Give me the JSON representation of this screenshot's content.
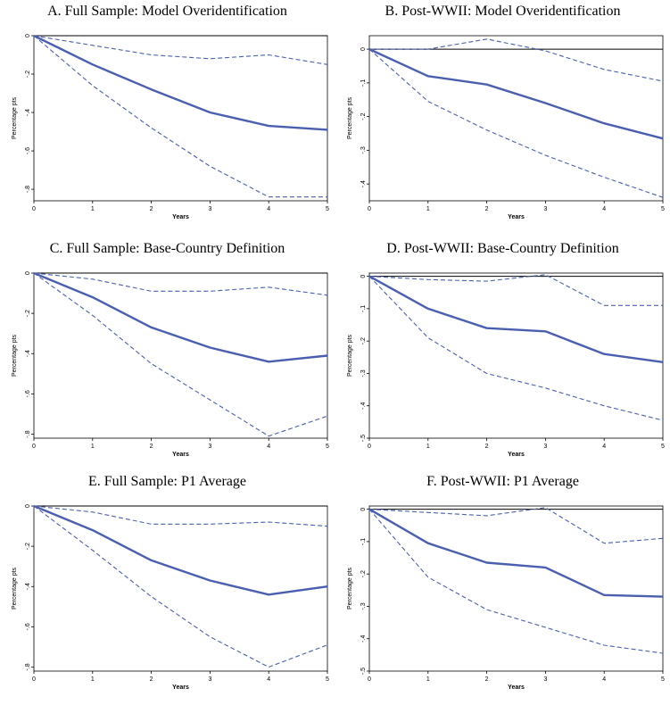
{
  "style": {
    "line_color": "#4a5fb0",
    "zero_line_color": "#000000"
  },
  "chart_data": [
    {
      "type": "line",
      "title": "A. Full Sample: Model Overidentification",
      "xlabel": "Years",
      "ylabel": "Percentage pts",
      "x": [
        0,
        1,
        2,
        3,
        4,
        5
      ],
      "xlim": [
        0,
        5
      ],
      "ylim": [
        -0.86,
        0.0
      ],
      "yticks": [
        0,
        -0.2,
        -0.4,
        -0.6,
        -0.8
      ],
      "ytick_labels": [
        "0",
        "-.2",
        "-.4",
        "-.6",
        "-.8"
      ],
      "xtick_labels": [
        "0",
        "1",
        "2",
        "3",
        "4",
        "5"
      ],
      "series": [
        {
          "role": "estimate",
          "values": [
            0,
            -0.15,
            -0.28,
            -0.4,
            -0.47,
            -0.49
          ]
        },
        {
          "role": "upper",
          "values": [
            0,
            -0.05,
            -0.1,
            -0.12,
            -0.1,
            -0.15
          ]
        },
        {
          "role": "lower",
          "values": [
            0,
            -0.26,
            -0.48,
            -0.68,
            -0.84,
            -0.84
          ]
        }
      ]
    },
    {
      "type": "line",
      "title": "B. Post-WWII: Model Overidentification",
      "xlabel": "Years",
      "ylabel": "Percentage pts",
      "x": [
        0,
        1,
        2,
        3,
        4,
        5
      ],
      "xlim": [
        0,
        5
      ],
      "ylim": [
        -0.45,
        0.04
      ],
      "yticks": [
        0,
        -0.1,
        -0.2,
        -0.3,
        -0.4
      ],
      "ytick_labels": [
        "0",
        "-.1",
        "-.2",
        "-.3",
        "-.4"
      ],
      "xtick_labels": [
        "0",
        "1",
        "2",
        "3",
        "4",
        "5"
      ],
      "series": [
        {
          "role": "estimate",
          "values": [
            0,
            -0.08,
            -0.105,
            -0.16,
            -0.22,
            -0.265
          ]
        },
        {
          "role": "upper",
          "values": [
            0,
            0,
            0.03,
            -0.005,
            -0.06,
            -0.095
          ]
        },
        {
          "role": "lower",
          "values": [
            0,
            -0.155,
            -0.24,
            -0.315,
            -0.38,
            -0.44
          ]
        }
      ]
    },
    {
      "type": "line",
      "title": "C. Full Sample: Base-Country Definition",
      "xlabel": "Years",
      "ylabel": "Percentage pts",
      "x": [
        0,
        1,
        2,
        3,
        4,
        5
      ],
      "xlim": [
        0,
        5
      ],
      "ylim": [
        -0.82,
        0.0
      ],
      "yticks": [
        0,
        -0.2,
        -0.4,
        -0.6,
        -0.8
      ],
      "ytick_labels": [
        "0",
        "-.2",
        "-.4",
        "-.6",
        "-.8"
      ],
      "xtick_labels": [
        "0",
        "1",
        "2",
        "3",
        "4",
        "5"
      ],
      "series": [
        {
          "role": "estimate",
          "values": [
            0,
            -0.12,
            -0.27,
            -0.37,
            -0.44,
            -0.41
          ]
        },
        {
          "role": "upper",
          "values": [
            0,
            -0.03,
            -0.09,
            -0.09,
            -0.07,
            -0.11
          ]
        },
        {
          "role": "lower",
          "values": [
            0,
            -0.21,
            -0.45,
            -0.63,
            -0.81,
            -0.71
          ]
        }
      ]
    },
    {
      "type": "line",
      "title": "D. Post-WWII: Base-Country Definition",
      "xlabel": "Years",
      "ylabel": "Percentage pts",
      "x": [
        0,
        1,
        2,
        3,
        4,
        5
      ],
      "xlim": [
        0,
        5
      ],
      "ylim": [
        -0.5,
        0.01
      ],
      "yticks": [
        0,
        -0.1,
        -0.2,
        -0.3,
        -0.4,
        -0.5
      ],
      "ytick_labels": [
        "0",
        "-.1",
        "-.2",
        "-.3",
        "-.4",
        "-.5"
      ],
      "xtick_labels": [
        "0",
        "1",
        "2",
        "3",
        "4",
        "5"
      ],
      "series": [
        {
          "role": "estimate",
          "values": [
            0,
            -0.1,
            -0.16,
            -0.17,
            -0.24,
            -0.265
          ]
        },
        {
          "role": "upper",
          "values": [
            0,
            -0.01,
            -0.015,
            0.005,
            -0.09,
            -0.09
          ]
        },
        {
          "role": "lower",
          "values": [
            0,
            -0.19,
            -0.3,
            -0.345,
            -0.4,
            -0.445
          ]
        }
      ]
    },
    {
      "type": "line",
      "title": "E. Full Sample: P1 Average",
      "xlabel": "Years",
      "ylabel": "Percentage pts",
      "x": [
        0,
        1,
        2,
        3,
        4,
        5
      ],
      "xlim": [
        0,
        5
      ],
      "ylim": [
        -0.82,
        0.0
      ],
      "yticks": [
        0,
        -0.2,
        -0.4,
        -0.6,
        -0.8
      ],
      "ytick_labels": [
        "0",
        "-.2",
        "-.4",
        "-.6",
        "-.8"
      ],
      "xtick_labels": [
        "0",
        "1",
        "2",
        "3",
        "4",
        "5"
      ],
      "series": [
        {
          "role": "estimate",
          "values": [
            0,
            -0.12,
            -0.27,
            -0.37,
            -0.44,
            -0.4
          ]
        },
        {
          "role": "upper",
          "values": [
            0,
            -0.03,
            -0.09,
            -0.09,
            -0.08,
            -0.1
          ]
        },
        {
          "role": "lower",
          "values": [
            0,
            -0.22,
            -0.45,
            -0.65,
            -0.8,
            -0.69
          ]
        }
      ]
    },
    {
      "type": "line",
      "title": "F. Post-WWII: P1 Average",
      "xlabel": "Years",
      "ylabel": "Percentage pts",
      "x": [
        0,
        1,
        2,
        3,
        4,
        5
      ],
      "xlim": [
        0,
        5
      ],
      "ylim": [
        -0.5,
        0.01
      ],
      "yticks": [
        0,
        -0.1,
        -0.2,
        -0.3,
        -0.4,
        -0.5
      ],
      "ytick_labels": [
        "0",
        "-.1",
        "-.2",
        "-.3",
        "-.4",
        "-.5"
      ],
      "xtick_labels": [
        "0",
        "1",
        "2",
        "3",
        "4",
        "5"
      ],
      "series": [
        {
          "role": "estimate",
          "values": [
            0,
            -0.105,
            -0.165,
            -0.18,
            -0.265,
            -0.27
          ]
        },
        {
          "role": "upper",
          "values": [
            0,
            -0.01,
            -0.02,
            0.005,
            -0.105,
            -0.09
          ]
        },
        {
          "role": "lower",
          "values": [
            0,
            -0.21,
            -0.31,
            -0.365,
            -0.42,
            -0.445
          ]
        }
      ]
    }
  ]
}
